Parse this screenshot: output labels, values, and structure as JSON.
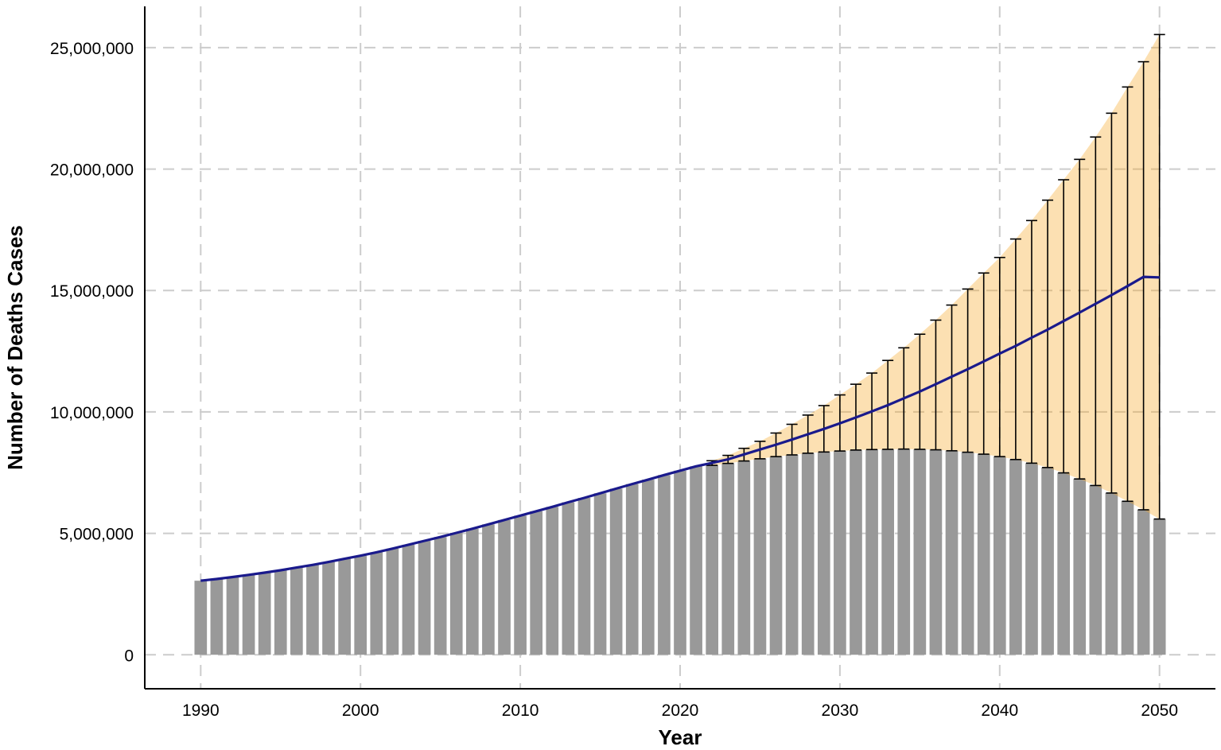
{
  "chart_data": {
    "type": "bar",
    "title": "",
    "xlabel": "Year",
    "ylabel": "Number of Deaths Cases",
    "xlim": [
      1986.5,
      2053.5
    ],
    "ylim": [
      -1400000,
      26700000
    ],
    "x_ticks": [
      1990,
      2000,
      2010,
      2020,
      2030,
      2040,
      2050
    ],
    "x_tick_labels": [
      "1990",
      "2000",
      "2010",
      "2020",
      "2030",
      "2040",
      "2050"
    ],
    "y_ticks": [
      0,
      5000000,
      10000000,
      15000000,
      20000000,
      25000000
    ],
    "y_tick_labels": [
      "0",
      "5,000,000",
      "10,000,000",
      "15,000,000",
      "20,000,000",
      "25,000,000"
    ],
    "grid": true,
    "grid_style": "dashed",
    "colors": {
      "bar": "#999999",
      "line": "#1a1a8c",
      "ribbon": "#f5a623",
      "errorbar": "#000000",
      "grid": "#cccccc",
      "axis": "#000000"
    },
    "series": [
      {
        "name": "",
        "role": "observed",
        "x": [
          1990,
          1991,
          1992,
          1993,
          1994,
          1995,
          1996,
          1997,
          1998,
          1999,
          2000,
          2001,
          2002,
          2003,
          2004,
          2005,
          2006,
          2007,
          2008,
          2009,
          2010,
          2011,
          2012,
          2013,
          2014,
          2015,
          2016,
          2017,
          2018,
          2019,
          2020,
          2021
        ],
        "values": [
          3050000,
          3120000,
          3200000,
          3290000,
          3380000,
          3480000,
          3590000,
          3700000,
          3820000,
          3950000,
          4080000,
          4220000,
          4370000,
          4530000,
          4690000,
          4850000,
          5020000,
          5190000,
          5370000,
          5550000,
          5730000,
          5910000,
          6090000,
          6280000,
          6460000,
          6650000,
          6840000,
          7030000,
          7210000,
          7400000,
          7580000,
          7760000
        ]
      },
      {
        "name": "",
        "role": "projected",
        "x": [
          2022,
          2023,
          2024,
          2025,
          2026,
          2027,
          2028,
          2029,
          2030,
          2031,
          2032,
          2033,
          2034,
          2035,
          2036,
          2037,
          2038,
          2039,
          2040,
          2041,
          2042,
          2043,
          2044,
          2045,
          2046,
          2047,
          2048,
          2049,
          2050
        ],
        "values": [
          7900000,
          8050000,
          8250000,
          8450000,
          8650000,
          8860000,
          9080000,
          9300000,
          9530000,
          9770000,
          10020000,
          10280000,
          10560000,
          10840000,
          11140000,
          11450000,
          11760000,
          12080000,
          12400000,
          12720000,
          13060000,
          13390000,
          13740000,
          14090000,
          14450000,
          14810000,
          15180000,
          15560000,
          15540000
        ],
        "lower": [
          7800000,
          7880000,
          7980000,
          8070000,
          8160000,
          8230000,
          8300000,
          8350000,
          8390000,
          8430000,
          8450000,
          8460000,
          8470000,
          8460000,
          8440000,
          8400000,
          8340000,
          8260000,
          8160000,
          8040000,
          7890000,
          7710000,
          7490000,
          7240000,
          6970000,
          6660000,
          6320000,
          5970000,
          5590000
        ],
        "upper": [
          7990000,
          8210000,
          8500000,
          8790000,
          9130000,
          9490000,
          9870000,
          10260000,
          10700000,
          11140000,
          11600000,
          12120000,
          12640000,
          13200000,
          13780000,
          14400000,
          15060000,
          15720000,
          16360000,
          17120000,
          17880000,
          18720000,
          19560000,
          20400000,
          21320000,
          22300000,
          23380000,
          24420000,
          25540000
        ]
      }
    ]
  }
}
